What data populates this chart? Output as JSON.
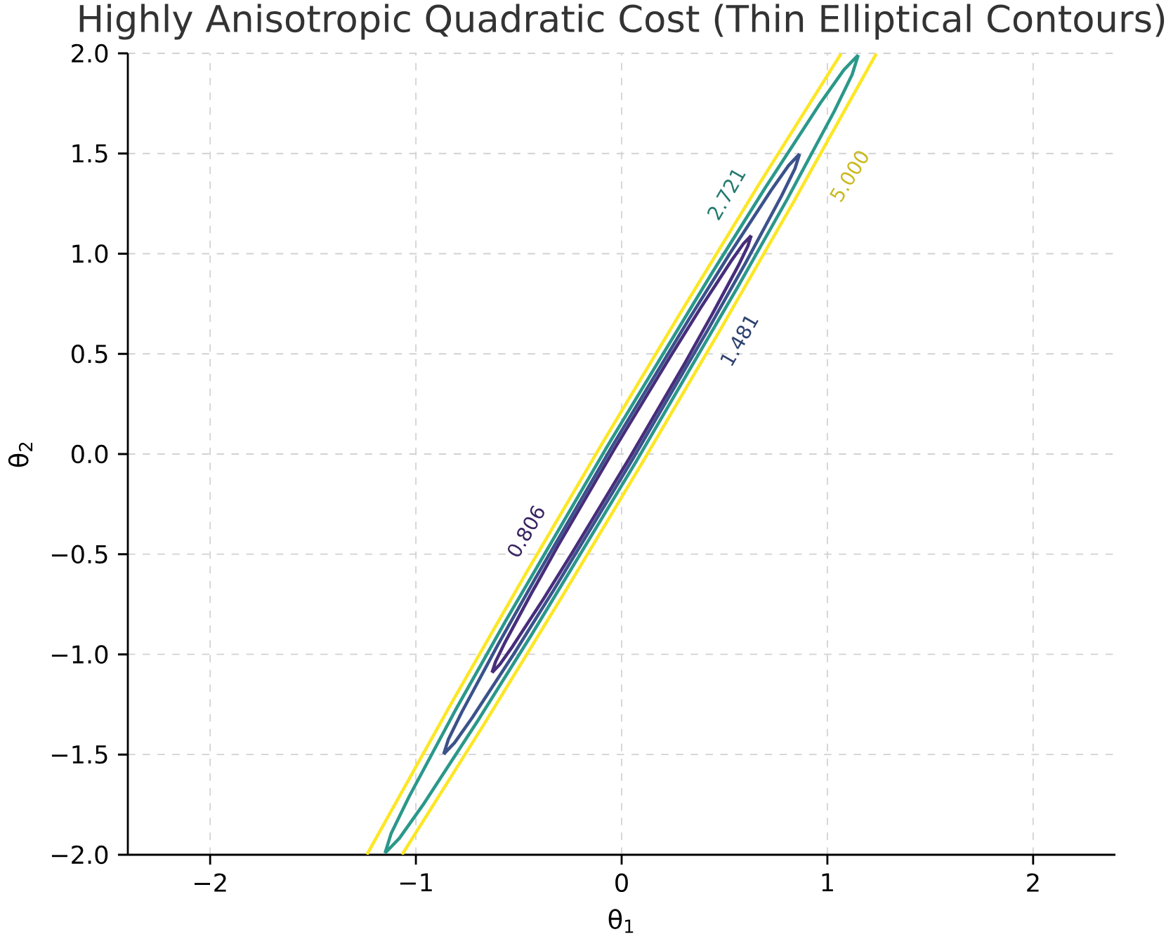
{
  "chart_data": {
    "type": "line",
    "title": "Highly Anisotropic Quadratic Cost (Thin Elliptical Contours)",
    "xlabel": "θ$_{1}$",
    "ylabel": "θ$_{2}$",
    "xlim": [
      -2.4,
      2.4
    ],
    "ylim": [
      -2.0,
      2.0
    ],
    "xticks": [
      {
        "value": -2,
        "label": "−2"
      },
      {
        "value": -1,
        "label": "−1"
      },
      0,
      1,
      2
    ],
    "yticks": [
      {
        "value": -2.0,
        "label": "−2.0"
      },
      {
        "value": -1.5,
        "label": "−1.5"
      },
      {
        "value": -1.0,
        "label": "−1.0"
      },
      {
        "value": -0.5,
        "label": "−0.5"
      },
      {
        "value": 0.0,
        "label": "0.0"
      },
      {
        "value": 0.5,
        "label": "0.5"
      },
      {
        "value": 1.0,
        "label": "1.0"
      },
      {
        "value": 1.5,
        "label": "1.5"
      },
      {
        "value": 2.0,
        "label": "2.0"
      }
    ],
    "grid": true,
    "line_style": "solid",
    "series": [
      {
        "name": "5.000",
        "color": "#fde725",
        "x": [
          -1.238,
          -0.832,
          -0.466,
          -0.094,
          0.284,
          0.668,
          1.067,
          null,
          1.238,
          0.832,
          0.466,
          0.094,
          -0.284,
          -0.668,
          -1.067
        ],
        "values": [
          -1.999,
          -1.252,
          -0.597,
          0.054,
          0.702,
          1.347,
          1.999,
          null,
          1.999,
          1.252,
          0.597,
          -0.054,
          -0.702,
          -1.347,
          -1.999
        ]
      },
      {
        "name": "2.721",
        "color": "#2a988a",
        "x": [
          -1.15,
          -1.12,
          -1.034,
          -0.803,
          -0.562,
          -0.069,
          0.438,
          0.698,
          0.966,
          1.08,
          1.15,
          null,
          1.15,
          1.12,
          1.034,
          0.803,
          0.562,
          0.069,
          -0.438,
          -0.698,
          -0.966,
          -1.08,
          -1.15
        ],
        "values": [
          -1.992,
          -1.893,
          -1.712,
          -1.269,
          -0.83,
          0.04,
          0.902,
          1.329,
          1.752,
          1.917,
          1.992,
          null,
          1.992,
          1.893,
          1.712,
          1.269,
          0.83,
          -0.04,
          -0.902,
          -1.329,
          -1.752,
          -1.917,
          -1.992
        ]
      },
      {
        "name": "1.481",
        "color": "#3b528b",
        "x": [
          -0.865,
          -0.842,
          -0.777,
          -0.603,
          -0.422,
          -0.051,
          0.33,
          0.525,
          0.727,
          0.812,
          0.865,
          null,
          0.865,
          0.842,
          0.777,
          0.603,
          0.422,
          0.051,
          -0.33,
          -0.525,
          -0.727,
          -0.812,
          -0.865
        ],
        "values": [
          -1.498,
          -1.424,
          -1.288,
          -0.955,
          -0.625,
          0.03,
          0.678,
          0.999,
          1.317,
          1.441,
          1.498,
          null,
          1.498,
          1.424,
          1.288,
          0.955,
          0.625,
          -0.03,
          -0.678,
          -0.999,
          -1.317,
          -1.441,
          -1.498
        ]
      },
      {
        "name": "0.806",
        "color": "#472d7b",
        "x": [
          -0.63,
          -0.613,
          -0.566,
          -0.439,
          -0.308,
          -0.037,
          0.241,
          0.383,
          0.53,
          0.592,
          0.63,
          null,
          0.63,
          0.613,
          0.566,
          0.439,
          0.308,
          0.037,
          -0.241,
          -0.383,
          -0.53,
          -0.592,
          -0.63
        ],
        "values": [
          -1.091,
          -1.037,
          -0.938,
          -0.696,
          -0.455,
          0.022,
          0.494,
          0.728,
          0.96,
          1.05,
          1.091,
          null,
          1.091,
          1.037,
          0.938,
          0.696,
          0.455,
          -0.022,
          -0.494,
          -0.728,
          -0.96,
          -1.05,
          -1.091
        ]
      }
    ]
  }
}
